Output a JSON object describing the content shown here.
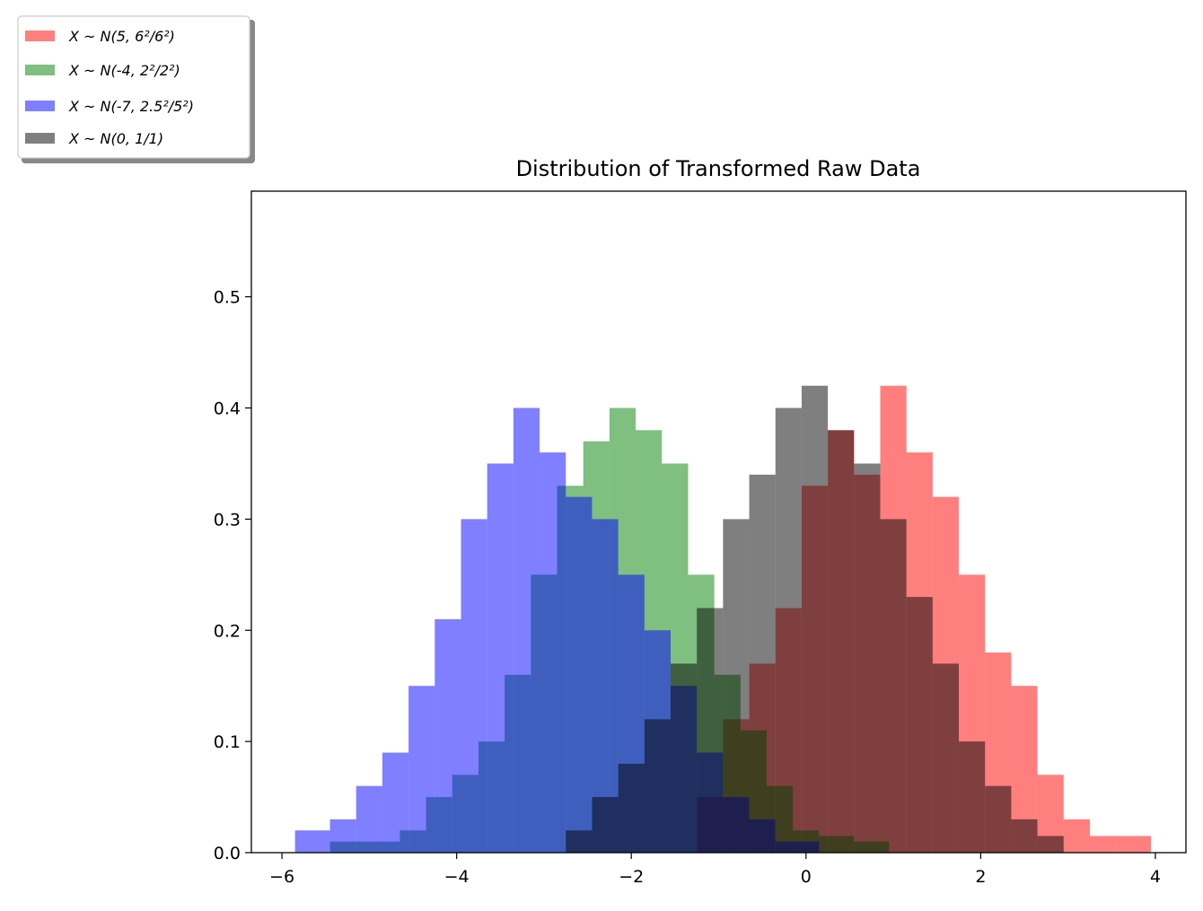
{
  "chart_data": {
    "type": "bar",
    "title": "Distribution of Transformed Raw Data",
    "xlabel": "",
    "ylabel": "",
    "xlim": [
      -6.35,
      4.35
    ],
    "ylim": [
      0,
      0.595
    ],
    "x_ticks": [
      -6,
      -4,
      -2,
      0,
      2,
      4
    ],
    "x_tick_labels": [
      "−6",
      "−4",
      "−2",
      "0",
      "2",
      "4"
    ],
    "y_ticks": [
      0.0,
      0.1,
      0.2,
      0.3,
      0.4,
      0.5
    ],
    "y_tick_labels": [
      "0.0",
      "0.1",
      "0.2",
      "0.3",
      "0.4",
      "0.5"
    ],
    "grid": false,
    "legend_placement": "upper-left-outside",
    "bar_alpha": 0.5,
    "series": [
      {
        "name": "X ~ N(5, 6²/6²)",
        "color": "#ff0000",
        "bins": [
          [
            -1.25,
            -0.95,
            0.05
          ],
          [
            -0.95,
            -0.65,
            0.12
          ],
          [
            -0.65,
            -0.35,
            0.17
          ],
          [
            -0.35,
            -0.05,
            0.22
          ],
          [
            -0.05,
            0.25,
            0.33
          ],
          [
            0.25,
            0.55,
            0.38
          ],
          [
            0.55,
            0.85,
            0.34
          ],
          [
            0.85,
            1.15,
            0.42
          ],
          [
            1.15,
            1.45,
            0.36
          ],
          [
            1.45,
            1.75,
            0.32
          ],
          [
            1.75,
            2.05,
            0.25
          ],
          [
            2.05,
            2.35,
            0.18
          ],
          [
            2.35,
            2.65,
            0.15
          ],
          [
            2.65,
            2.95,
            0.07
          ],
          [
            2.95,
            3.25,
            0.03
          ],
          [
            3.25,
            3.55,
            0.015
          ],
          [
            3.55,
            3.95,
            0.015
          ]
        ]
      },
      {
        "name": "X ~ N(-4, 2²/2²)",
        "color": "#008000",
        "bins": [
          [
            -5.45,
            -5.05,
            0.01
          ],
          [
            -5.05,
            -4.65,
            0.01
          ],
          [
            -4.65,
            -4.35,
            0.02
          ],
          [
            -4.35,
            -4.05,
            0.05
          ],
          [
            -4.05,
            -3.75,
            0.07
          ],
          [
            -3.75,
            -3.45,
            0.1
          ],
          [
            -3.45,
            -3.15,
            0.16
          ],
          [
            -3.15,
            -2.85,
            0.25
          ],
          [
            -2.85,
            -2.55,
            0.33
          ],
          [
            -2.55,
            -2.25,
            0.37
          ],
          [
            -2.25,
            -1.95,
            0.4
          ],
          [
            -1.95,
            -1.65,
            0.38
          ],
          [
            -1.65,
            -1.35,
            0.35
          ],
          [
            -1.35,
            -1.05,
            0.25
          ],
          [
            -1.05,
            -0.75,
            0.16
          ],
          [
            -0.75,
            -0.45,
            0.11
          ],
          [
            -0.45,
            -0.15,
            0.06
          ],
          [
            -0.15,
            0.15,
            0.02
          ],
          [
            0.15,
            0.55,
            0.015
          ],
          [
            0.55,
            0.95,
            0.01
          ]
        ]
      },
      {
        "name": "X ~ N(-7, 2.5²/5²)",
        "color": "#0000ff",
        "bins": [
          [
            -5.85,
            -5.45,
            0.02
          ],
          [
            -5.45,
            -5.15,
            0.03
          ],
          [
            -5.15,
            -4.85,
            0.06
          ],
          [
            -4.85,
            -4.55,
            0.09
          ],
          [
            -4.55,
            -4.25,
            0.15
          ],
          [
            -4.25,
            -3.95,
            0.21
          ],
          [
            -3.95,
            -3.65,
            0.3
          ],
          [
            -3.65,
            -3.35,
            0.35
          ],
          [
            -3.35,
            -3.05,
            0.4
          ],
          [
            -3.05,
            -2.75,
            0.36
          ],
          [
            -2.75,
            -2.45,
            0.32
          ],
          [
            -2.45,
            -2.15,
            0.3
          ],
          [
            -2.15,
            -1.85,
            0.25
          ],
          [
            -1.85,
            -1.55,
            0.2
          ],
          [
            -1.55,
            -1.25,
            0.15
          ],
          [
            -1.25,
            -0.95,
            0.09
          ],
          [
            -0.95,
            -0.65,
            0.05
          ],
          [
            -0.65,
            -0.35,
            0.03
          ],
          [
            -0.35,
            0.15,
            0.01
          ]
        ]
      },
      {
        "name": "X ~ N(0, 1/1)",
        "color": "#000000",
        "bins": [
          [
            -2.75,
            -2.45,
            0.02
          ],
          [
            -2.45,
            -2.15,
            0.05
          ],
          [
            -2.15,
            -1.85,
            0.08
          ],
          [
            -1.85,
            -1.55,
            0.12
          ],
          [
            -1.55,
            -1.25,
            0.17
          ],
          [
            -1.25,
            -0.95,
            0.22
          ],
          [
            -0.95,
            -0.65,
            0.3
          ],
          [
            -0.65,
            -0.35,
            0.34
          ],
          [
            -0.35,
            -0.05,
            0.4
          ],
          [
            -0.05,
            0.25,
            0.42
          ],
          [
            0.25,
            0.55,
            0.38
          ],
          [
            0.55,
            0.85,
            0.35
          ],
          [
            0.85,
            1.15,
            0.3
          ],
          [
            1.15,
            1.45,
            0.23
          ],
          [
            1.45,
            1.75,
            0.17
          ],
          [
            1.75,
            2.05,
            0.1
          ],
          [
            2.05,
            2.35,
            0.06
          ],
          [
            2.35,
            2.65,
            0.03
          ],
          [
            2.65,
            2.95,
            0.015
          ]
        ]
      }
    ]
  }
}
